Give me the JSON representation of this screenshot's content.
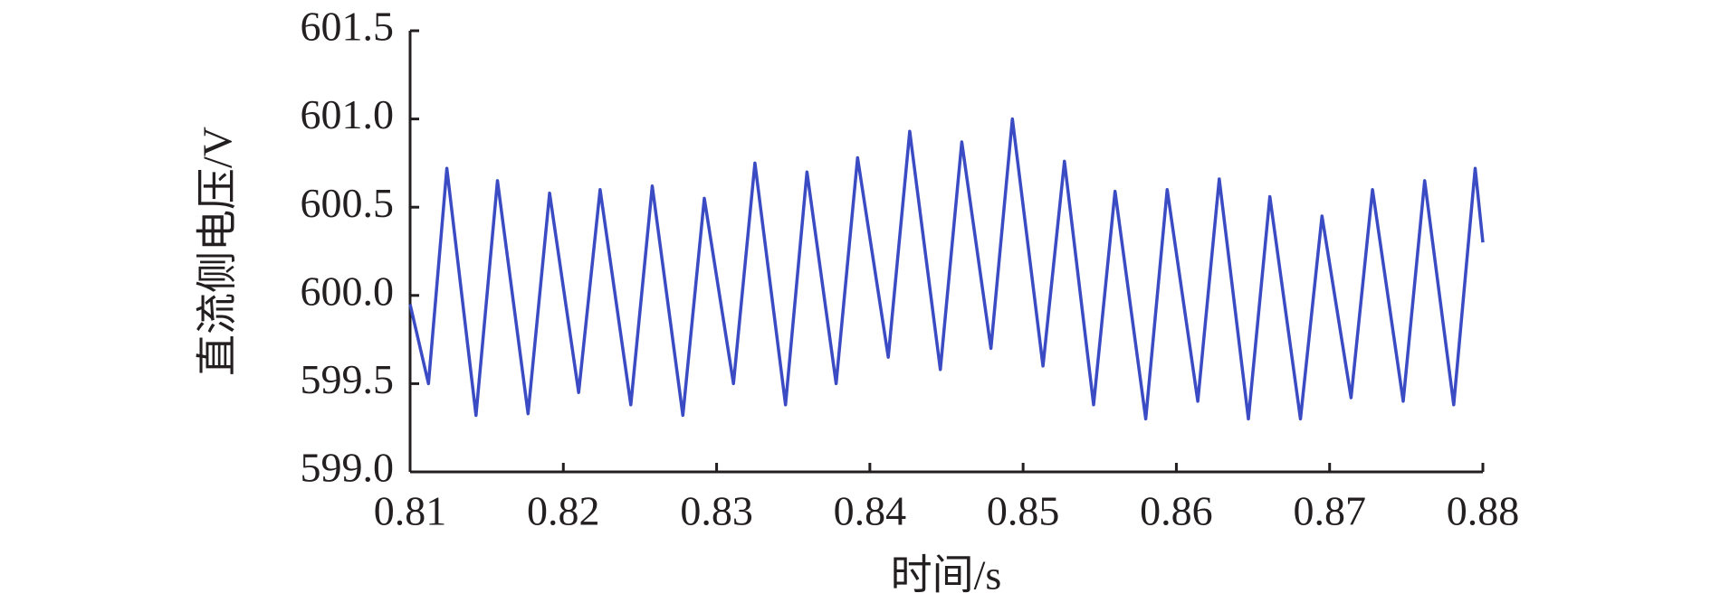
{
  "chart_data": {
    "type": "line",
    "x_label": "时间/s",
    "y_label": "直流侧电压/V",
    "xlim": [
      0.81,
      0.88
    ],
    "xticks": [
      0.81,
      0.82,
      0.83,
      0.84,
      0.85,
      0.86,
      0.87,
      0.88
    ],
    "ylim": [
      599.0,
      601.5
    ],
    "yticks": [
      {
        "value": 599,
        "label": "599.0"
      },
      {
        "value": 599.5,
        "label": "599.5"
      },
      {
        "value": 600,
        "label": "600.0"
      },
      {
        "value": 600.5,
        "label": "600.5"
      },
      {
        "value": 601,
        "label": "601.0"
      },
      {
        "value": 601.5,
        "label": "601.5"
      }
    ],
    "grid": false,
    "series": [
      {
        "color": "#3a4bc4",
        "x": [
          0.81,
          0.8112,
          0.8124,
          0.8143,
          0.8157,
          0.8177,
          0.8191,
          0.821,
          0.8224,
          0.8244,
          0.8258,
          0.8278,
          0.8292,
          0.8311,
          0.8325,
          0.8345,
          0.8359,
          0.8378,
          0.8392,
          0.8412,
          0.8426,
          0.8446,
          0.846,
          0.8479,
          0.8493,
          0.8513,
          0.8527,
          0.8546,
          0.856,
          0.858,
          0.8594,
          0.8614,
          0.8628,
          0.8647,
          0.8661,
          0.8681,
          0.8695,
          0.8714,
          0.8728,
          0.8748,
          0.8762,
          0.8781,
          0.8795,
          0.88
        ],
        "values": [
          599.95,
          599.5,
          600.72,
          599.32,
          600.65,
          599.33,
          600.58,
          599.45,
          600.6,
          599.38,
          600.62,
          599.32,
          600.55,
          599.5,
          600.75,
          599.38,
          600.7,
          599.5,
          600.78,
          599.65,
          600.93,
          599.58,
          600.87,
          599.7,
          601.0,
          599.6,
          600.76,
          599.38,
          600.59,
          599.3,
          600.6,
          599.4,
          600.66,
          599.3,
          600.56,
          599.3,
          600.45,
          599.42,
          600.6,
          599.4,
          600.65,
          599.38,
          600.72,
          600.3
        ]
      }
    ]
  }
}
